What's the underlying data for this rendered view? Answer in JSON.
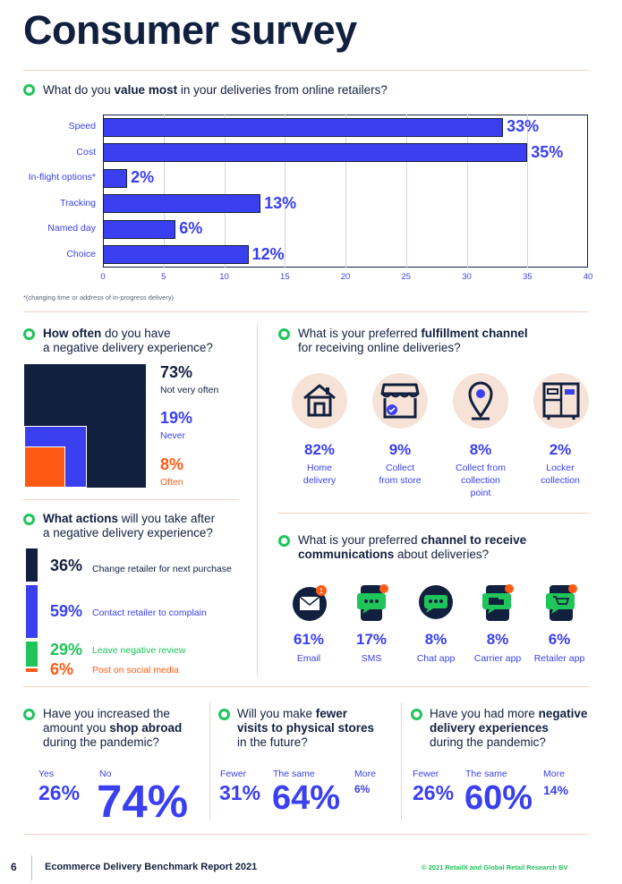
{
  "title": "Consumer survey",
  "value_question": {
    "prefix": "What do you ",
    "bold": "value most",
    "suffix": " in your deliveries from online retailers?",
    "footnote": "*(changing time or address of in-progress delivery)"
  },
  "chart_data": {
    "type": "bar",
    "orientation": "horizontal",
    "categories": [
      "Speed",
      "Cost",
      "In-flight options*",
      "Tracking",
      "Named day",
      "Choice"
    ],
    "values": [
      33,
      35,
      2,
      13,
      6,
      12
    ],
    "value_labels": [
      "33%",
      "35%",
      "2%",
      "13%",
      "6%",
      "12%"
    ],
    "xlim": [
      0,
      40
    ],
    "xticks": [
      "0",
      "5",
      "10",
      "15",
      "20",
      "25",
      "30",
      "35",
      "40"
    ],
    "grid": true,
    "colors": {
      "bar": "#3a3ff0",
      "outline": "#12203f"
    }
  },
  "how_often": {
    "bold": "How often",
    "rest1": " do you have",
    "rest2": "a negative delivery experience?",
    "items": [
      {
        "pct": "73%",
        "label": "Not very often",
        "color": "#12203f",
        "value": 73
      },
      {
        "pct": "19%",
        "label": "Never",
        "color": "#3a3ff0",
        "value": 19
      },
      {
        "pct": "8%",
        "label": "Often",
        "color": "#ff5a14",
        "value": 8
      }
    ]
  },
  "actions": {
    "bold": "What actions",
    "rest1": " will you take after",
    "rest2": "a negative delivery experience?",
    "items": [
      {
        "pct": "36%",
        "label": "Change retailer for next purchase",
        "color": "#12203f",
        "value": 36
      },
      {
        "pct": "59%",
        "label": "Contact retailer to complain",
        "color": "#3a3ff0",
        "value": 59
      },
      {
        "pct": "29%",
        "label": "Leave negative review",
        "color": "#1fc45a",
        "value": 29
      },
      {
        "pct": "6%",
        "label": "Post on social media",
        "color": "#ff5a14",
        "value": 6
      }
    ]
  },
  "fulfillment": {
    "prefix": "What is your preferred ",
    "bold": "fulfillment channel",
    "line2": "for receiving online deliveries?",
    "items": [
      {
        "icon": "home-icon",
        "pct": "82%",
        "label_lines": [
          "Home",
          "delivery"
        ]
      },
      {
        "icon": "store-icon",
        "pct": "9%",
        "label_lines": [
          "Collect",
          "from store"
        ]
      },
      {
        "icon": "location-pin-icon",
        "pct": "8%",
        "label_lines": [
          "Collect from",
          "collection",
          "point"
        ]
      },
      {
        "icon": "locker-icon",
        "pct": "2%",
        "label_lines": [
          "Locker",
          "collection"
        ]
      }
    ]
  },
  "communications": {
    "prefix": "What is your preferred ",
    "bold1": "channel to receive",
    "bold2": "communications",
    "suffix": " about deliveries?",
    "items": [
      {
        "icon": "email-icon",
        "pct": "61%",
        "label": "Email"
      },
      {
        "icon": "sms-icon",
        "pct": "17%",
        "label": "SMS"
      },
      {
        "icon": "chat-app-icon",
        "pct": "8%",
        "label": "Chat app"
      },
      {
        "icon": "carrier-app-icon",
        "pct": "8%",
        "label": "Carrier app"
      },
      {
        "icon": "retailer-app-icon",
        "pct": "6%",
        "label": "Retailer app"
      }
    ]
  },
  "shop_abroad": {
    "line1": "Have you increased the",
    "line2_prefix": "amount you ",
    "line2_bold": "shop abroad",
    "line3": "during the pandemic?",
    "yes_label": "Yes",
    "yes_pct": "26%",
    "no_label": "No",
    "no_pct": "74%"
  },
  "physical_stores": {
    "line1_prefix": "Will you make ",
    "line1_bold": "fewer",
    "line2_bold": "visits to physical stores",
    "line3": "in the future?",
    "a_label": "Fewer",
    "a_pct": "31%",
    "b_label": "The same",
    "b_pct": "64%",
    "c_label": "More",
    "c_pct": "6%"
  },
  "negative_pandemic": {
    "line1_prefix": "Have you had more ",
    "line1_bold": "negative",
    "line2_bold": "delivery experiences",
    "line3": "during the pandemic?",
    "a_label": "Fewer",
    "a_pct": "26%",
    "b_label": "The same",
    "b_pct": "60%",
    "c_label": "More",
    "c_pct": "14%"
  },
  "footer": {
    "page": "6",
    "report": "Ecommerce Delivery Benchmark Report 2021",
    "copyright": "© 2021 RetailX and Global Retail Research BV"
  },
  "colors": {
    "navy": "#12203f",
    "blue": "#3a3ff0",
    "green": "#1fc45a",
    "orange": "#ff5a14",
    "peach": "#f7e2d7"
  }
}
